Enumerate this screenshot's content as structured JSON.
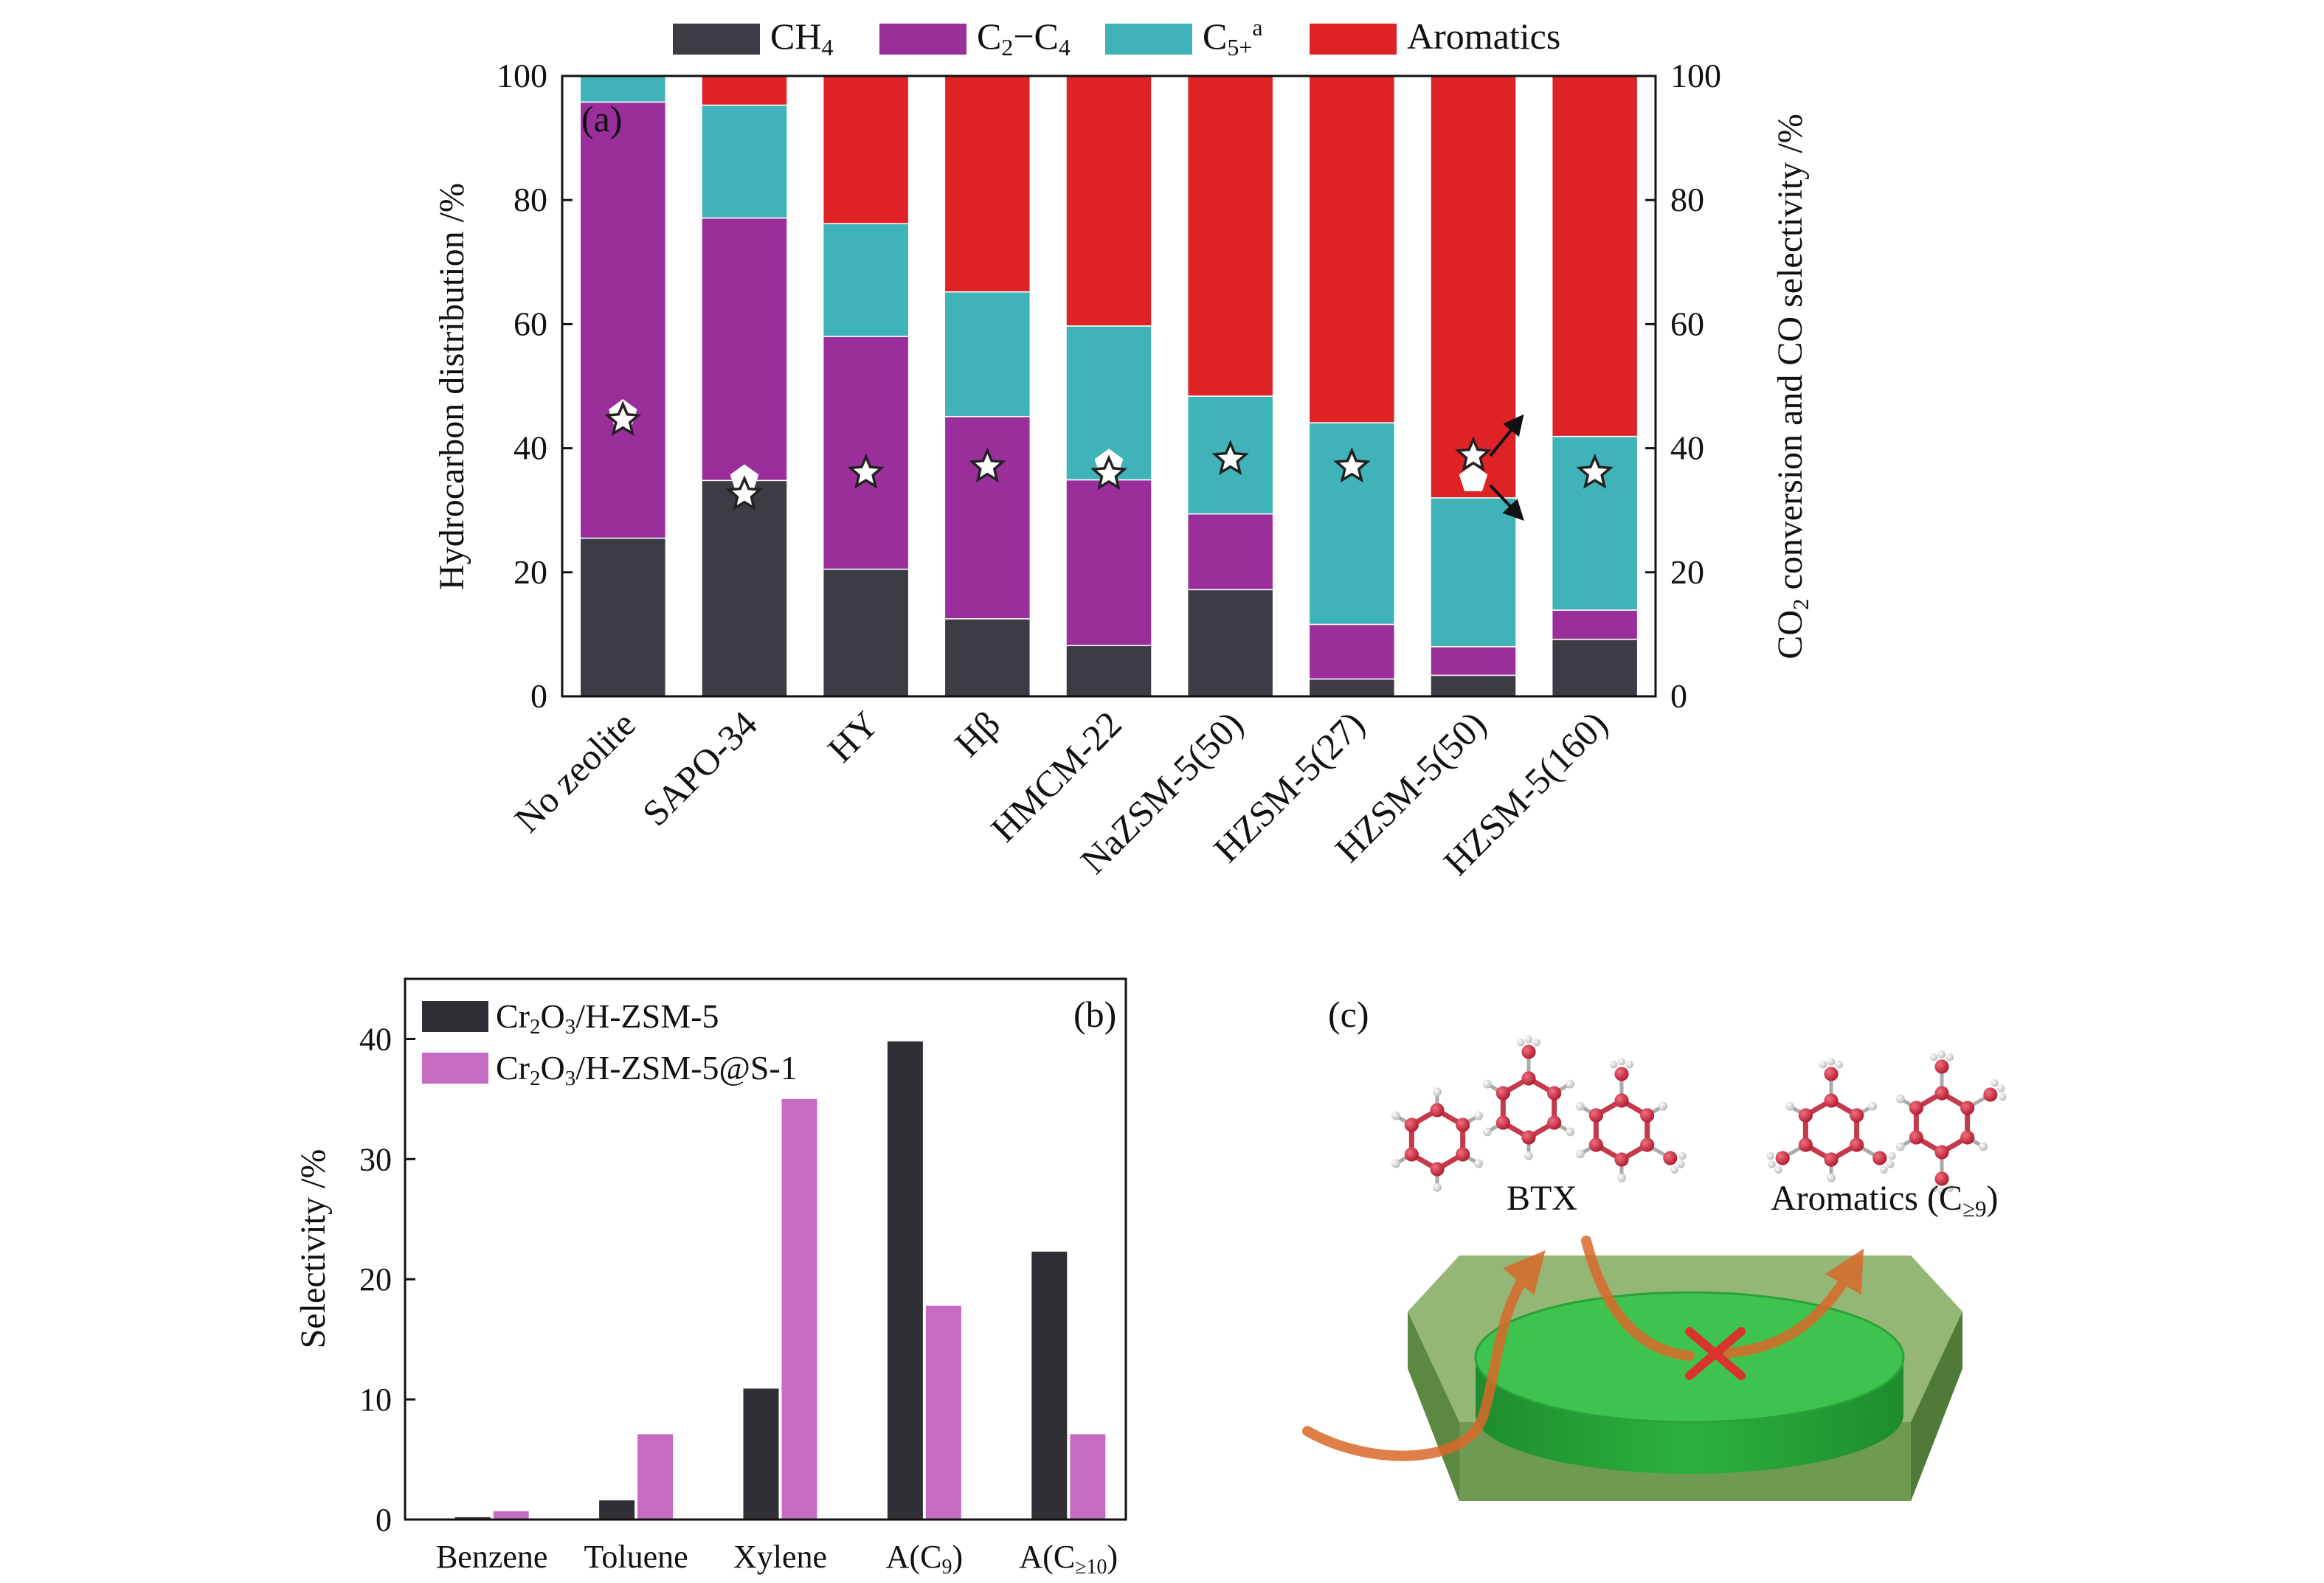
{
  "colors": {
    "ch4": "#3c3c44",
    "c2c4": "#9a2f9c",
    "c5": "#3fb3b8",
    "aromatics": "#df2226",
    "b_series1": "#2f2f35",
    "b_series2": "#c56bc2",
    "crystal_outer": "#8fb36f",
    "crystal_inner": "#36c14a",
    "arrow": "#d9692a",
    "cross": "#d8342c"
  },
  "chart_data": [
    {
      "panel": "(a)",
      "type": "stacked-bar",
      "ylabel": "Hydrocarbon distribution /%",
      "y2label_parts": [
        "CO",
        "2",
        " conversion and CO selectivity /%"
      ],
      "ylim": [
        0,
        100
      ],
      "y2lim": [
        0,
        100
      ],
      "yticks": [
        "0",
        "20",
        "40",
        "60",
        "80",
        "100"
      ],
      "categories": [
        "No zeolite",
        "SAPO-34",
        "HY",
        "Hβ",
        "HMCM-22",
        "NaZSM-5(50)",
        "HZSM-5(27)",
        "HZSM-5(50)",
        "HZSM-5(160)"
      ],
      "legend": [
        {
          "key": "ch4",
          "parts": [
            {
              "t": "CH"
            },
            {
              "t": "4",
              "sub": true
            }
          ]
        },
        {
          "key": "c2c4",
          "parts": [
            {
              "t": "C"
            },
            {
              "t": "2",
              "sub": true
            },
            {
              "t": "−C"
            },
            {
              "t": "4",
              "sub": true
            }
          ]
        },
        {
          "key": "c5",
          "parts": [
            {
              "t": "C"
            },
            {
              "t": "5+",
              "sub": true
            },
            {
              "t": "a",
              "sup": true
            }
          ]
        },
        {
          "key": "aromatics",
          "parts": [
            {
              "t": "Aromatics"
            }
          ]
        }
      ],
      "series": [
        {
          "key": "ch4",
          "values": [
            25.5,
            34.8,
            20.5,
            12.5,
            8.2,
            17.2,
            2.8,
            3.4,
            9.2
          ]
        },
        {
          "key": "c2c4",
          "values": [
            70.3,
            42.3,
            37.5,
            32.6,
            26.7,
            12.2,
            8.8,
            4.6,
            4.7
          ]
        },
        {
          "key": "c5",
          "values": [
            4.2,
            18.2,
            18.2,
            20.1,
            24.8,
            19.0,
            32.5,
            24.0,
            28.0
          ]
        },
        {
          "key": "aromatics",
          "values": [
            0,
            4.7,
            23.8,
            34.8,
            40.3,
            51.6,
            55.9,
            68.0,
            58.1
          ]
        }
      ],
      "co2_conversion": [
        44.5,
        32.5,
        36.0,
        37.0,
        35.8,
        38.2,
        37.0,
        38.8,
        36.0
      ],
      "co_selectivity": [
        45.5,
        35.0,
        null,
        null,
        37.5,
        null,
        null,
        35.0,
        null
      ]
    },
    {
      "panel": "(b)",
      "type": "bar",
      "ylabel": "Selectivity /%",
      "ylim": [
        0,
        45
      ],
      "yticks": [
        "0",
        "10",
        "20",
        "30",
        "40"
      ],
      "categories": [
        [
          {
            "t": "Benzene"
          }
        ],
        [
          {
            "t": "Toluene"
          }
        ],
        [
          {
            "t": "Xylene"
          }
        ],
        [
          {
            "t": "A(C"
          },
          {
            "t": "9",
            "sub": true
          },
          {
            "t": ")"
          }
        ],
        [
          {
            "t": "A(C"
          },
          {
            "t": "≥10",
            "sub": true
          },
          {
            "t": ")"
          }
        ]
      ],
      "series": [
        {
          "key": "b_series1",
          "legend": [
            {
              "t": "Cr"
            },
            {
              "t": "2",
              "sub": true
            },
            {
              "t": "O"
            },
            {
              "t": "3",
              "sub": true
            },
            {
              "t": "/H-ZSM-5"
            }
          ],
          "values": [
            0.2,
            1.6,
            10.9,
            39.8,
            22.3
          ]
        },
        {
          "key": "b_series2",
          "legend": [
            {
              "t": "Cr"
            },
            {
              "t": "2",
              "sub": true
            },
            {
              "t": "O"
            },
            {
              "t": "3",
              "sub": true
            },
            {
              "t": "/H-ZSM-5@S-1"
            }
          ],
          "values": [
            0.7,
            7.1,
            35.0,
            17.8,
            7.1
          ]
        }
      ]
    }
  ],
  "diagram_c": {
    "panel": "(c)",
    "label_btx": "BTX",
    "label_aromatics": [
      {
        "t": "Aromatics (C"
      },
      {
        "t": "≥9",
        "sub": true
      },
      {
        "t": ")"
      }
    ]
  }
}
